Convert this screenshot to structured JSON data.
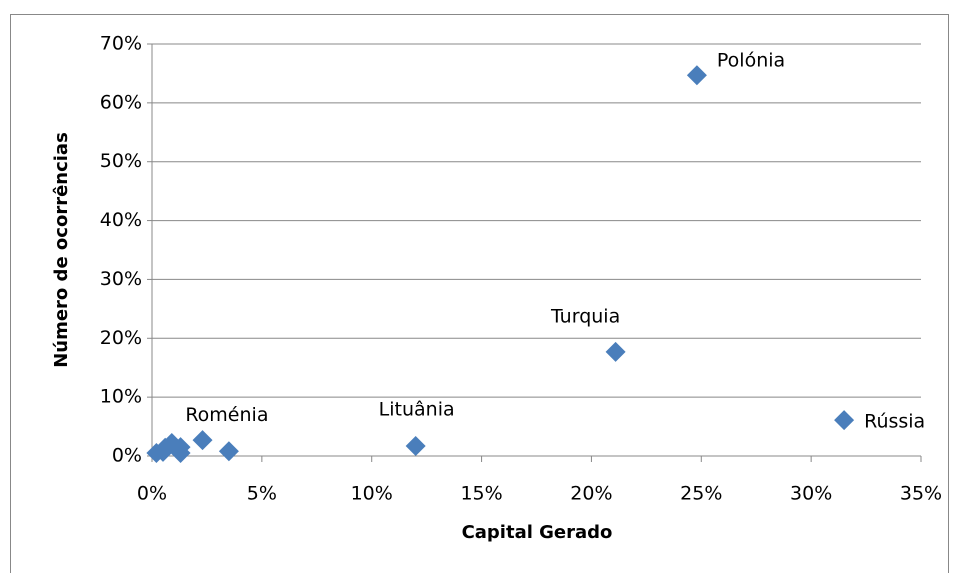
{
  "chart_data": {
    "type": "scatter",
    "xlabel": "Capital Gerado",
    "ylabel": "Número de ocorrências",
    "color": "#4a7ebb",
    "grid": true,
    "xlim": [
      0,
      35
    ],
    "xticks": [
      {
        "value": 0,
        "label": "0%"
      },
      {
        "value": 5,
        "label": "5%"
      },
      {
        "value": 10,
        "label": "10%"
      },
      {
        "value": 15,
        "label": "15%"
      },
      {
        "value": 20,
        "label": "20%"
      },
      {
        "value": 25,
        "label": "25%"
      },
      {
        "value": 30,
        "label": "30%"
      },
      {
        "value": 35,
        "label": "35%"
      }
    ],
    "ylim": [
      0,
      70
    ],
    "yticks": [
      {
        "value": 0,
        "label": "0%"
      },
      {
        "value": 10,
        "label": "10%"
      },
      {
        "value": 20,
        "label": "20%"
      },
      {
        "value": 30,
        "label": "30%"
      },
      {
        "value": 40,
        "label": "40%"
      },
      {
        "value": 50,
        "label": "50%"
      },
      {
        "value": 60,
        "label": "60%"
      },
      {
        "value": 70,
        "label": "70%"
      }
    ],
    "x": [
      24.8,
      21.1,
      31.5,
      12.0,
      3.5,
      2.3,
      0.9,
      1.3,
      1.3,
      0.2,
      0.5,
      0.6
    ],
    "values": [
      64.7,
      17.7,
      6.1,
      1.7,
      0.8,
      2.7,
      2.2,
      1.5,
      0.5,
      0.5,
      0.7,
      1.4
    ],
    "labels": [
      "Polónia",
      "Turquia",
      "Rússia",
      "Lituânia",
      "Roménia",
      null,
      null,
      null,
      null,
      null,
      null,
      null
    ]
  }
}
